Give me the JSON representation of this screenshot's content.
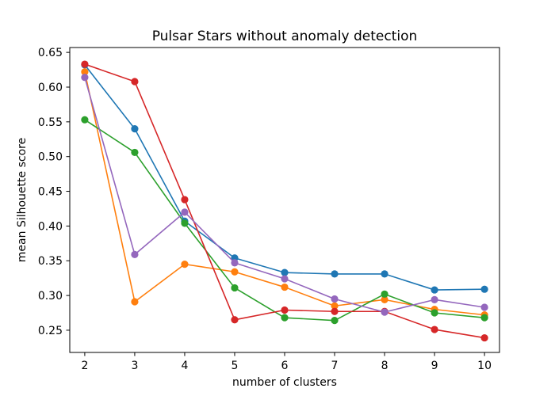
{
  "chart_data": {
    "type": "line",
    "title": "Pulsar Stars without anomaly detection",
    "xlabel": "number of clusters",
    "ylabel": "mean Silhouette score",
    "x": [
      2,
      3,
      4,
      5,
      6,
      7,
      8,
      9,
      10
    ],
    "xlim": [
      1.7,
      10.3
    ],
    "ylim": [
      0.218,
      0.657
    ],
    "xticks": [
      2,
      3,
      4,
      5,
      6,
      7,
      8,
      9,
      10
    ],
    "yticks": [
      0.25,
      0.3,
      0.35,
      0.4,
      0.45,
      0.5,
      0.55,
      0.6,
      0.65
    ],
    "ytick_labels": [
      "0.25",
      "0.30",
      "0.35",
      "0.40",
      "0.45",
      "0.50",
      "0.55",
      "0.60",
      "0.65"
    ],
    "grid": false,
    "legend": null,
    "series": [
      {
        "color": "#1f77b4",
        "values": [
          0.632,
          0.54,
          0.407,
          0.354,
          0.333,
          0.331,
          0.331,
          0.308,
          0.309
        ]
      },
      {
        "color": "#ff7f0e",
        "values": [
          0.622,
          0.291,
          0.345,
          0.334,
          0.312,
          0.285,
          0.294,
          0.28,
          0.272
        ]
      },
      {
        "color": "#2ca02c",
        "values": [
          0.553,
          0.506,
          0.404,
          0.311,
          0.268,
          0.264,
          0.302,
          0.275,
          0.268
        ]
      },
      {
        "color": "#d62728",
        "values": [
          0.633,
          0.608,
          0.438,
          0.265,
          0.279,
          0.277,
          0.277,
          0.251,
          0.239
        ]
      },
      {
        "color": "#9467bd",
        "values": [
          0.614,
          0.359,
          0.42,
          0.347,
          0.324,
          0.295,
          0.276,
          0.294,
          0.283
        ]
      }
    ]
  }
}
